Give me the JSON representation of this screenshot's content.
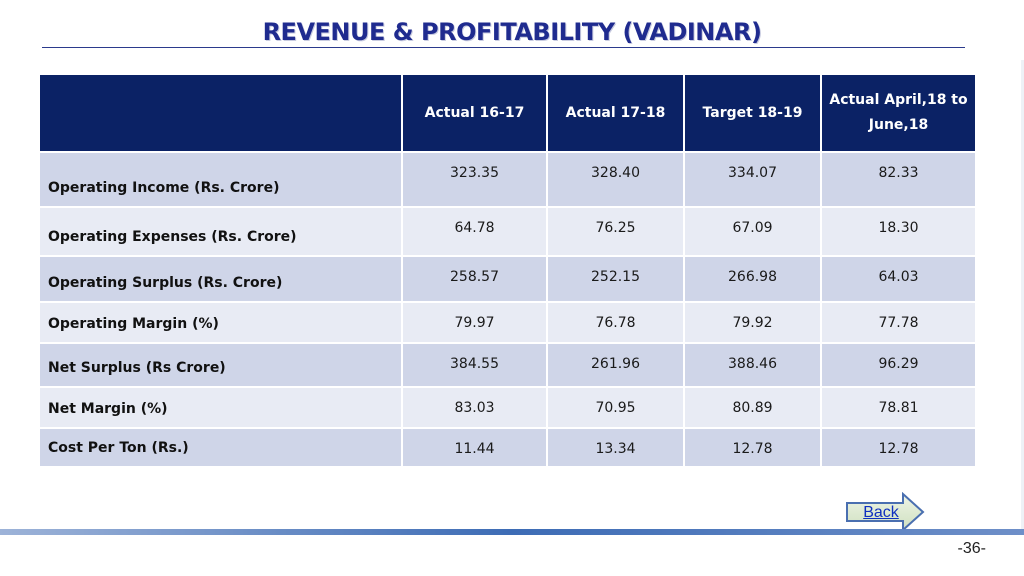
{
  "slide": {
    "title": "REVENUE & PROFITABILITY (VADINAR)",
    "back_label": "Back",
    "page_number": "-36-"
  },
  "table": {
    "headers": [
      "",
      "Actual 16-17",
      "Actual 17-18",
      "Target 18-19",
      "Actual April,18 to June,18"
    ],
    "rows": [
      {
        "label": "Operating Income (Rs. Crore)",
        "values": [
          "323.35",
          "328.40",
          "334.07",
          "82.33"
        ]
      },
      {
        "label": "Operating Expenses (Rs. Crore)",
        "values": [
          "64.78",
          "76.25",
          "67.09",
          "18.30"
        ]
      },
      {
        "label": "Operating Surplus  (Rs. Crore)",
        "values": [
          "258.57",
          "252.15",
          "266.98",
          "64.03"
        ]
      },
      {
        "label": "Operating Margin (%)",
        "values": [
          "79.97",
          "76.78",
          "79.92",
          "77.78"
        ]
      },
      {
        "label": "Net Surplus (Rs Crore)",
        "values": [
          "384.55",
          "261.96",
          "388.46",
          "96.29"
        ]
      },
      {
        "label": "Net Margin   (%)",
        "values": [
          "83.03",
          "70.95",
          "80.89",
          "78.81"
        ]
      },
      {
        "label": "Cost Per Ton (Rs.)",
        "values": [
          "11.44",
          "13.34",
          "12.78",
          "12.78"
        ]
      }
    ]
  },
  "colors": {
    "header_bg": "#0b2265",
    "title": "#1f2b8f",
    "row_dark": "#cfd5e8",
    "row_light": "#e8ebf4"
  }
}
